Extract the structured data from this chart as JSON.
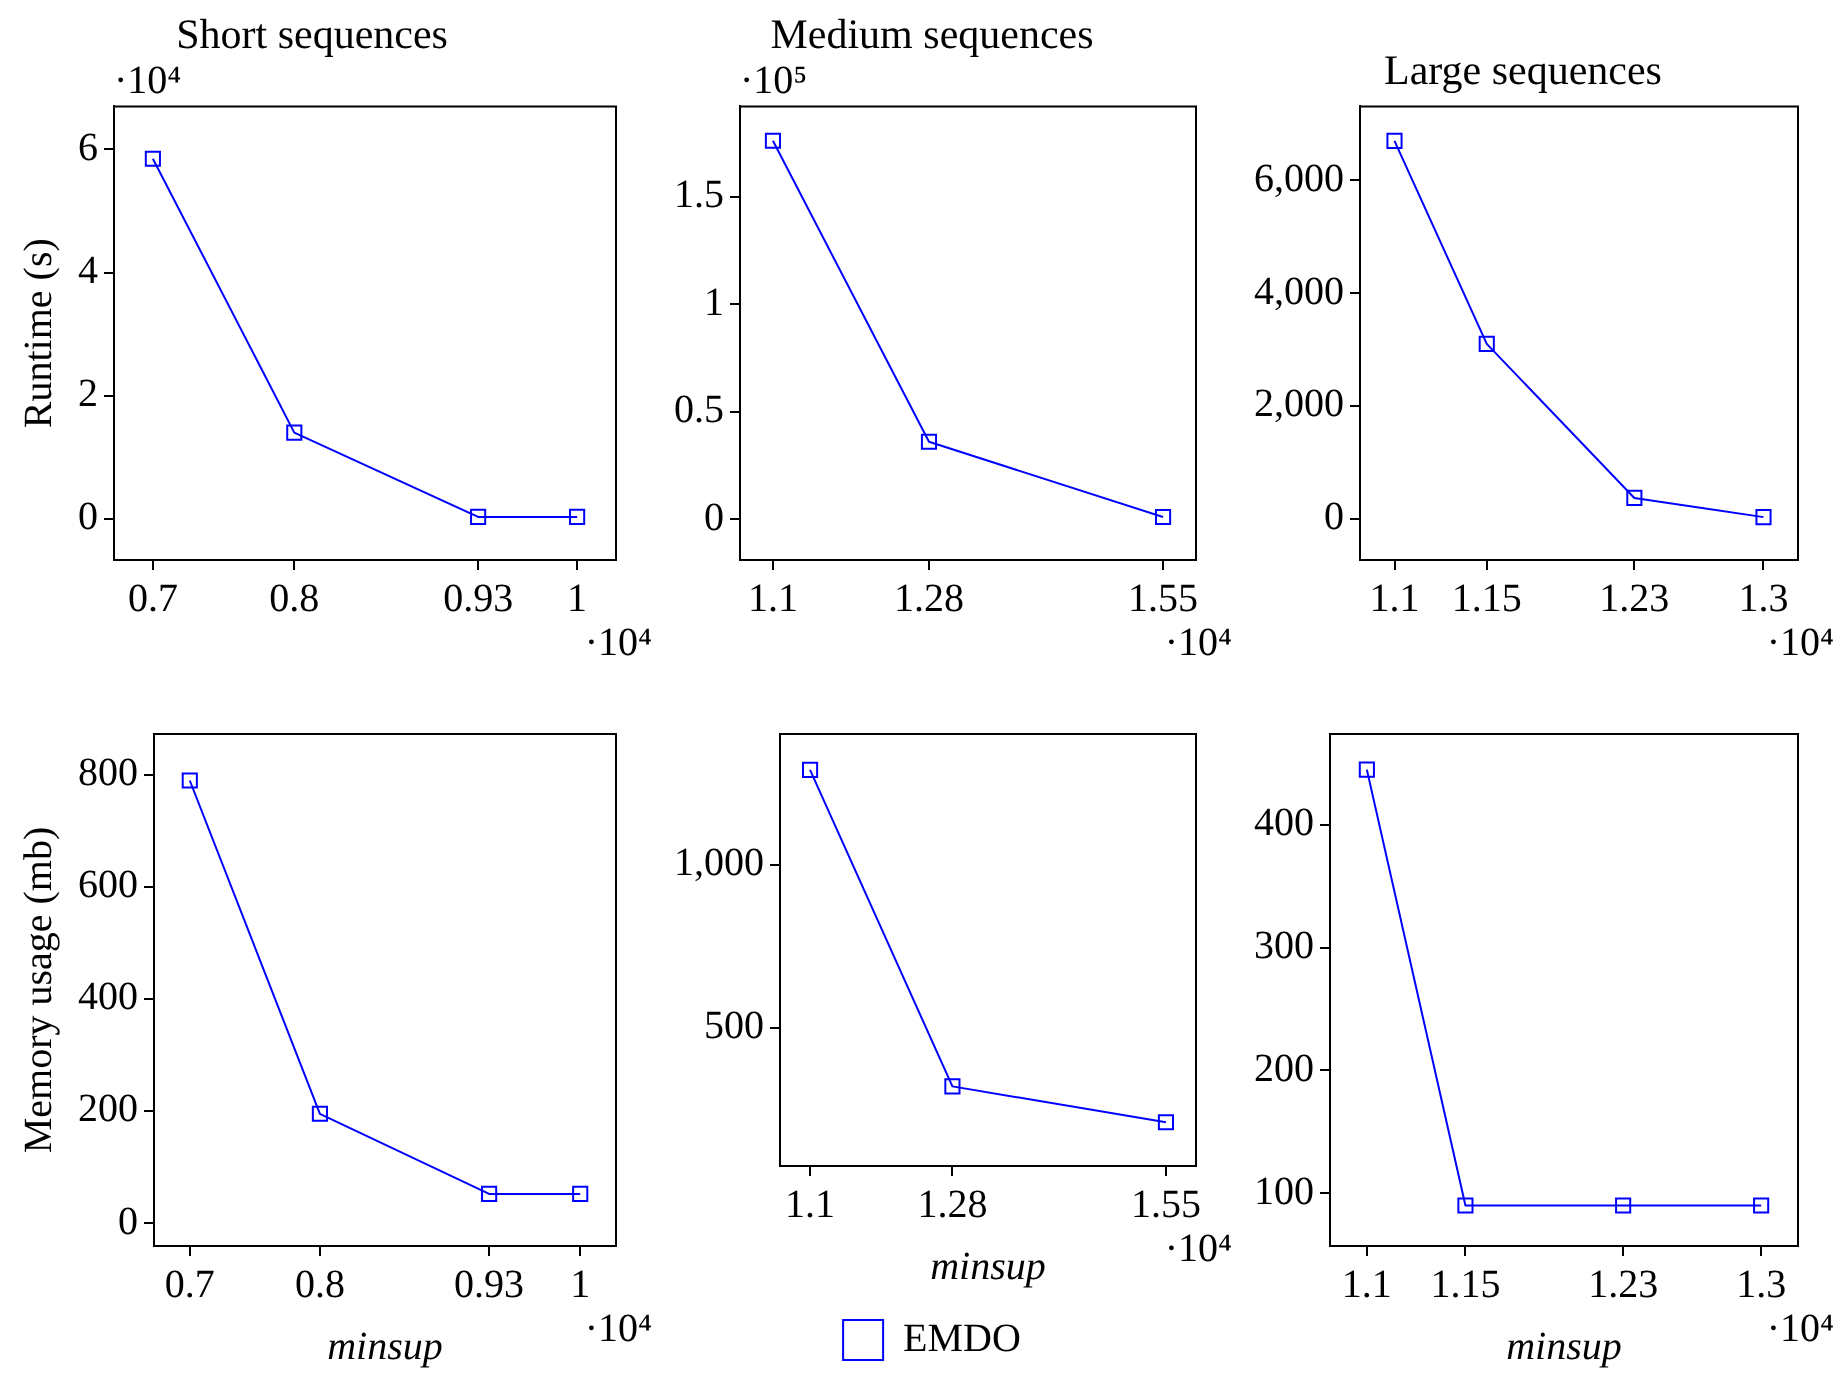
{
  "chart_data": [
    {
      "type": "line",
      "title": "Short sequences",
      "ylabel": "Runtime (s)",
      "x": [
        0.7,
        0.8,
        0.93,
        1
      ],
      "series": [
        {
          "color": "#0000ff",
          "values": [
            5.85,
            1.4,
            0.03,
            0.03
          ]
        }
      ],
      "xlim": [
        0.6725,
        1.0275
      ],
      "ylim": [
        -0.67,
        6.7
      ],
      "xticks": [
        0.7,
        0.8,
        0.93,
        1
      ],
      "yticks": [
        0,
        2,
        4,
        6
      ],
      "annotations": [
        "·10⁴",
        "·10⁴"
      ],
      "grid": false,
      "marker": "square",
      "line_style": "solid"
    },
    {
      "type": "line",
      "title": "Medium sequences",
      "x": [
        1.1,
        1.28,
        1.55
      ],
      "series": [
        {
          "color": "#0000ff",
          "values": [
            1.76,
            0.36,
            0.01
          ]
        }
      ],
      "xlim": [
        1.062,
        1.588
      ],
      "ylim": [
        -0.19,
        1.92
      ],
      "xticks": [
        1.1,
        1.28,
        1.55
      ],
      "yticks": [
        0,
        0.5,
        1,
        1.5
      ],
      "annotations": [
        "·10⁵",
        "·10⁴"
      ],
      "grid": false,
      "marker": "square",
      "line_style": "solid"
    },
    {
      "type": "line",
      "title": "Large sequences",
      "x": [
        1.1,
        1.15,
        1.23,
        1.3
      ],
      "series": [
        {
          "color": "#0000ff",
          "values": [
            6700,
            3100,
            370,
            30
          ]
        }
      ],
      "xlim": [
        1.0813,
        1.3187
      ],
      "ylim": [
        -730,
        7310
      ],
      "xticks": [
        1.1,
        1.15,
        1.23,
        1.3
      ],
      "yticks": [
        0,
        {
          "value": 2000,
          "label": "2,000"
        },
        {
          "value": 4000,
          "label": "4,000"
        },
        {
          "value": 6000,
          "label": "6,000"
        }
      ],
      "annotations": [
        "·10⁴"
      ],
      "grid": false,
      "marker": "square",
      "line_style": "solid"
    },
    {
      "type": "line",
      "xlabel": "minsup",
      "ylabel": "Memory usage (mb)",
      "x": [
        0.7,
        0.8,
        0.93,
        1
      ],
      "series": [
        {
          "color": "#0000ff",
          "values": [
            790,
            195,
            52,
            52
          ]
        }
      ],
      "xlim": [
        0.6725,
        1.0275
      ],
      "ylim": [
        -41,
        873
      ],
      "xticks": [
        0.7,
        0.8,
        0.93,
        1
      ],
      "yticks": [
        0,
        200,
        400,
        600,
        800
      ],
      "annotations": [
        "·10⁴"
      ],
      "grid": false,
      "marker": "square",
      "line_style": "solid"
    },
    {
      "type": "line",
      "xlabel": "minsup",
      "x": [
        1.1,
        1.28,
        1.55
      ],
      "series": [
        {
          "name": "EMDO",
          "color": "#0000ff",
          "values": [
            1290,
            320,
            210
          ]
        }
      ],
      "xlim": [
        1.062,
        1.588
      ],
      "ylim": [
        76,
        1400
      ],
      "xticks": [
        1.1,
        1.28,
        1.55
      ],
      "yticks": [
        500,
        {
          "value": 1000,
          "label": "1,000"
        }
      ],
      "annotations": [
        "·10⁴"
      ],
      "grid": false,
      "legend": "bottom",
      "marker": "square",
      "line_style": "solid"
    },
    {
      "type": "line",
      "xlabel": "minsup",
      "x": [
        1.1,
        1.15,
        1.23,
        1.3
      ],
      "series": [
        {
          "color": "#0000ff",
          "values": [
            445,
            90,
            90,
            90
          ]
        }
      ],
      "xlim": [
        1.0813,
        1.3187
      ],
      "ylim": [
        57,
        474
      ],
      "xticks": [
        1.1,
        1.15,
        1.23,
        1.3
      ],
      "yticks": [
        100,
        200,
        300,
        400
      ],
      "annotations": [
        "·10⁴"
      ],
      "grid": false,
      "marker": "square",
      "line_style": "solid"
    }
  ]
}
